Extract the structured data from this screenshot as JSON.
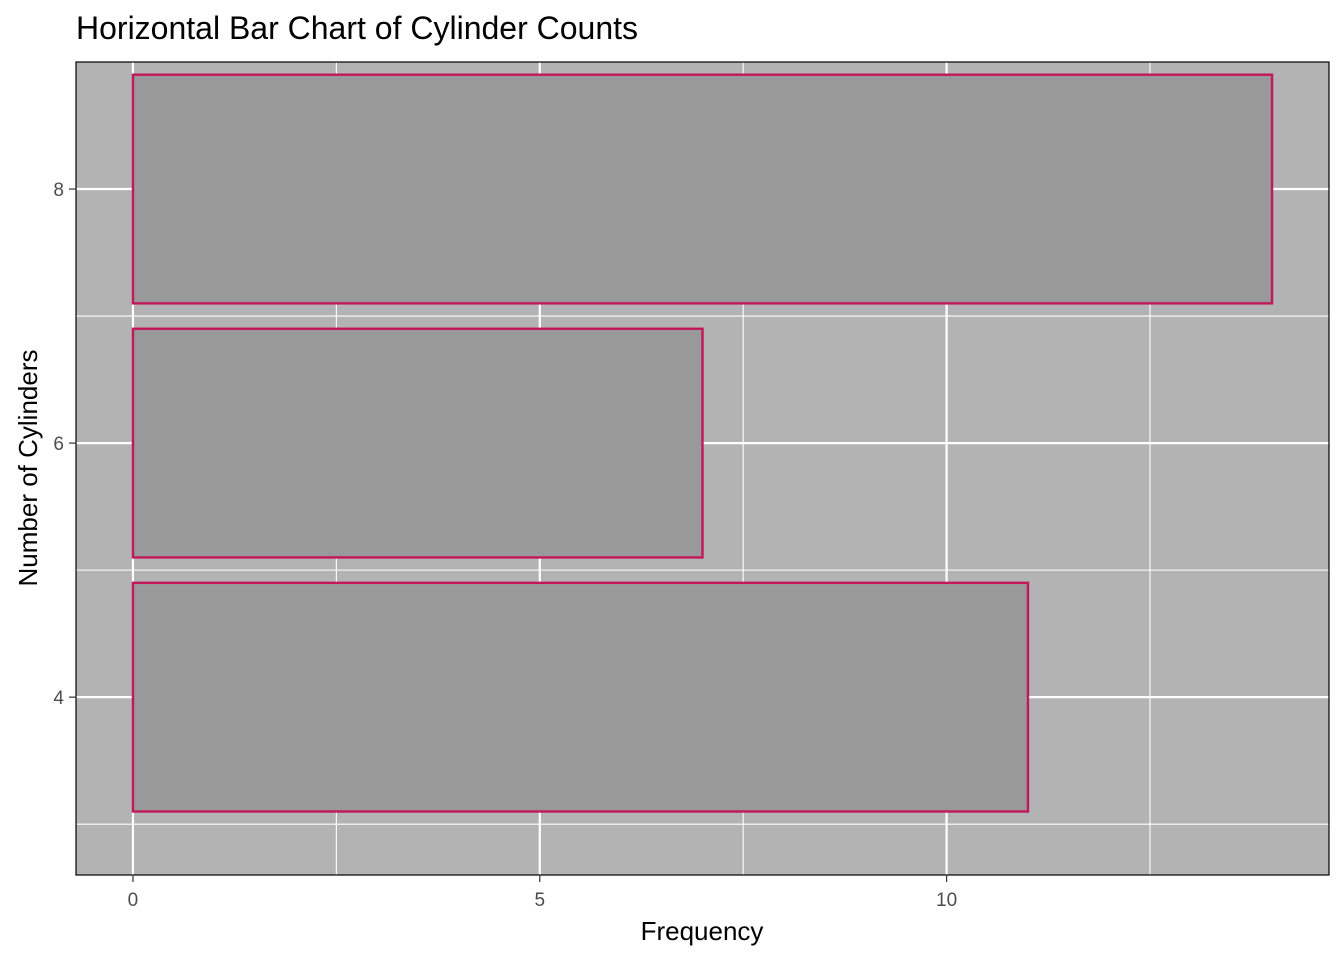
{
  "chart_data": {
    "type": "bar",
    "orientation": "horizontal",
    "title": "Horizontal Bar Chart of Cylinder Counts",
    "xlabel": "Frequency",
    "ylabel": "Number of Cylinders",
    "categories": [
      4,
      6,
      8
    ],
    "values": [
      11,
      7,
      14
    ],
    "xlim": [
      -0.7,
      14.7
    ],
    "ylim": [
      2.6,
      9.0
    ],
    "xticks": [
      0,
      5,
      10
    ],
    "yticks": [
      4,
      6,
      8
    ],
    "grid": true,
    "colors": {
      "panel_background": "#b3b3b3",
      "bar_fill": "#999999",
      "bar_outline": "#c2185b",
      "grid": "#ffffff"
    }
  }
}
